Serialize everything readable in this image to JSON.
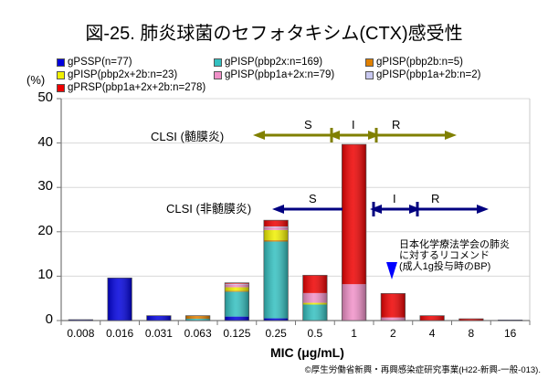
{
  "chart_data": {
    "type": "bar",
    "stacked": true,
    "title": "図-25. 肺炎球菌のセフォタキシム(CTX)感受性",
    "xlabel": "MIC (μg/mL)",
    "ylabel": "(%)",
    "ylim": [
      0,
      50
    ],
    "yticks": [
      "0",
      "10",
      "20",
      "30",
      "40",
      "50"
    ],
    "grid": true,
    "legend_position": "top",
    "categories": [
      "0.008",
      "0.016",
      "0.031",
      "0.063",
      "0.125",
      "0.25",
      "0.5",
      "1",
      "2",
      "4",
      "8",
      "16"
    ],
    "series": [
      {
        "name": "gPSSP(n=77)",
        "color": "#0000dd",
        "values": [
          0.2,
          9.6,
          1.1,
          0,
          0.9,
          0.5,
          0,
          0,
          0,
          0,
          0,
          0.1
        ]
      },
      {
        "name": "gPISP(pbp2x:n=169)",
        "color": "#33c0c0",
        "values": [
          0,
          0,
          0,
          0.4,
          5.6,
          17.3,
          3.6,
          0,
          0,
          0,
          0,
          0
        ]
      },
      {
        "name": "gPISP(pbp2b:n=5)",
        "color": "#e08000",
        "values": [
          0,
          0,
          0,
          0.7,
          0.2,
          0.3,
          0,
          0,
          0,
          0,
          0,
          0
        ]
      },
      {
        "name": "gPISP(pbp2x+2b:n=23)",
        "color": "#f0f000",
        "values": [
          0,
          0,
          0,
          0,
          0.8,
          2.3,
          0.4,
          0,
          0,
          0,
          0,
          0
        ]
      },
      {
        "name": "gPISP(pbp1a+2x:n=79)",
        "color": "#f090c8",
        "values": [
          0,
          0,
          0,
          0,
          0.6,
          0.6,
          2.2,
          8.2,
          0.7,
          0,
          0,
          0
        ]
      },
      {
        "name": "gPISP(pbp1a+2b:n=2)",
        "color": "#c8c8f0",
        "values": [
          0,
          0,
          0,
          0,
          0.2,
          0.2,
          0,
          0,
          0,
          0,
          0,
          0
        ]
      },
      {
        "name": "gPRSP(pbp1a+2x+2b:n=278)",
        "color": "#ee0000",
        "values": [
          0,
          0,
          0,
          0,
          0.2,
          1.4,
          4.0,
          31.5,
          5.4,
          1.1,
          0.4,
          0
        ]
      }
    ],
    "annotations": {
      "clsi_meningitis": {
        "label": "CLSI (髄膜炎)",
        "color": "#808000",
        "S": "S",
        "I": "I",
        "R": "R",
        "from": "0.25",
        "s_end": "1",
        "i_end": "2",
        "to": "4"
      },
      "clsi_non_meningitis": {
        "label": "CLSI (非髄膜炎)",
        "color": "#000080",
        "S": "S",
        "I": "I",
        "R": "R",
        "from": "0.063",
        "s_end": "2",
        "i_end": "4",
        "to": "8"
      },
      "recommendation": {
        "lines": [
          "日本化学療法学会の肺炎",
          "に対するリコメンド",
          "(成人1g投与時のBP)"
        ],
        "at": "2",
        "marker_color": "#0000ff"
      }
    }
  },
  "credit": "©厚生労働省新興・再興感染症研究事業(H22-新興-一般-013)."
}
